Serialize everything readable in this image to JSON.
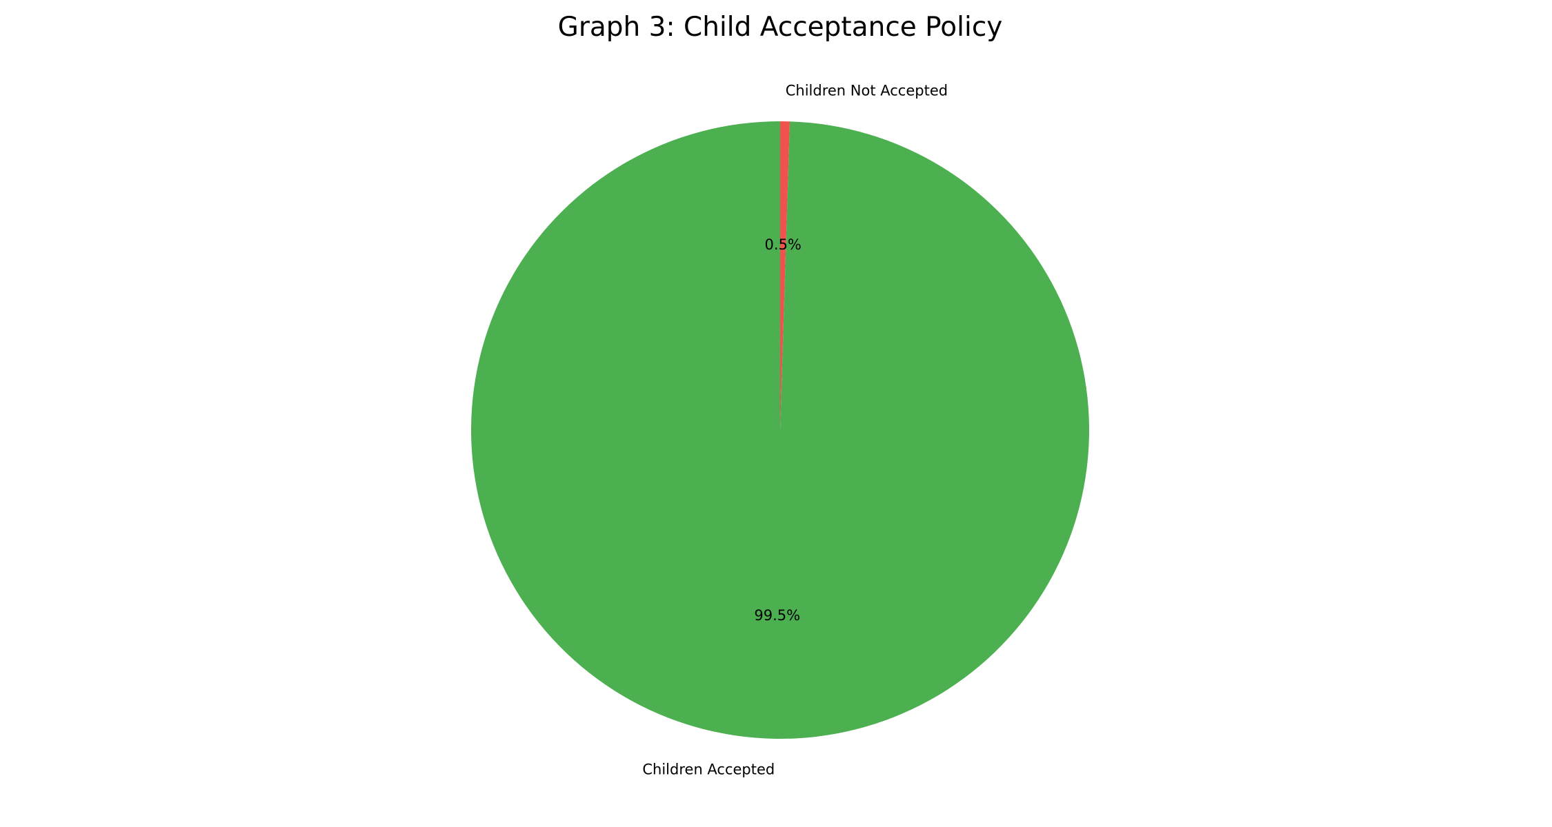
{
  "chart_data": {
    "type": "pie",
    "title": "Graph 3: Child Acceptance Policy",
    "slices": [
      {
        "label": "Children Not Accepted",
        "value": 0.5,
        "pct_label": "0.5%",
        "color": "#f0524d"
      },
      {
        "label": "Children Accepted",
        "value": 99.5,
        "pct_label": "99.5%",
        "color": "#4caf50"
      }
    ],
    "start_angle_deg": 90,
    "direction": "clockwise",
    "legend": "none"
  }
}
